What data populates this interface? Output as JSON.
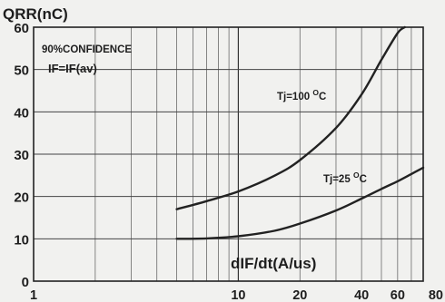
{
  "chart_data": {
    "type": "line",
    "title": "",
    "ylabel": "QRR(nC)",
    "xlabel": "dIF/dt(A/us)",
    "x_scale": "log",
    "xlim": [
      1,
      80
    ],
    "ylim": [
      0,
      60
    ],
    "grid": true,
    "x_ticks": [
      1,
      10,
      20,
      40,
      60,
      80
    ],
    "x_tick_labels": [
      "1",
      "10",
      "20",
      "40",
      "60",
      "80"
    ],
    "y_ticks": [
      0,
      10,
      20,
      30,
      40,
      50,
      60
    ],
    "y_tick_labels": [
      "0",
      "10",
      "20",
      "30",
      "40",
      "50",
      "60"
    ],
    "annotations": [
      "90%CONFIDENCE",
      "IF=IF(av)"
    ],
    "series": [
      {
        "name": "Tj=100 °C",
        "x": [
          5,
          7,
          10,
          15,
          20,
          30,
          40,
          50,
          60,
          65
        ],
        "y": [
          17,
          18.9,
          21.2,
          24.9,
          28.6,
          36.2,
          44.1,
          52.3,
          58.6,
          60
        ]
      },
      {
        "name": "Tj=25 °C",
        "x": [
          5,
          7,
          10,
          15,
          20,
          30,
          40,
          50,
          60,
          70,
          80
        ],
        "y": [
          10,
          10.1,
          10.6,
          11.9,
          13.6,
          16.7,
          19.5,
          21.8,
          23.6,
          25.3,
          26.8
        ]
      }
    ],
    "series_labels": [
      {
        "base": "Tj=100 ",
        "sup": "O",
        "unit": "C"
      },
      {
        "base": "Tj=25 ",
        "sup": "O",
        "unit": "C"
      }
    ]
  }
}
